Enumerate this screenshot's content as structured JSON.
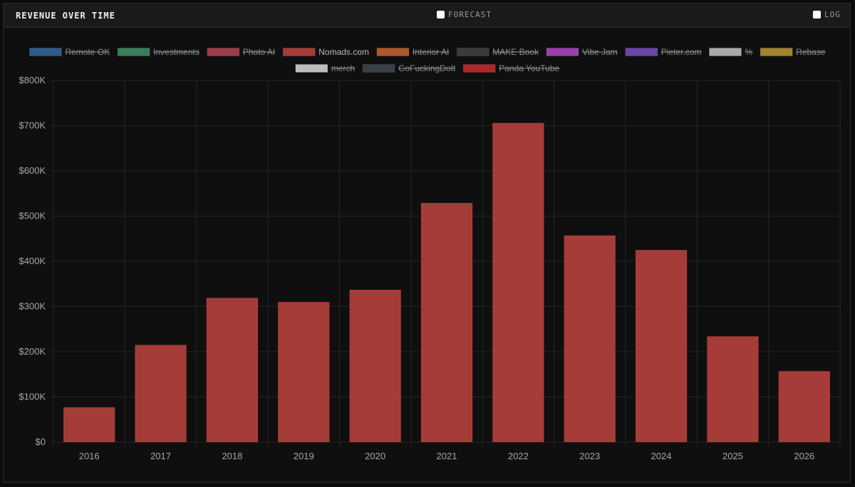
{
  "panel": {
    "title": "REVENUE OVER TIME",
    "forecast_label": "FORECAST",
    "log_label": "LOG"
  },
  "colors": {
    "bar": "#a63c38",
    "grid": "#262626",
    "legend_active": "#b8b8b8",
    "legend_inactive": "#8f8f8f"
  },
  "chart_data": {
    "type": "bar",
    "categories": [
      "2016",
      "2017",
      "2018",
      "2019",
      "2020",
      "2021",
      "2022",
      "2023",
      "2024",
      "2025",
      "2026"
    ],
    "series": [
      {
        "name": "Nomads.com",
        "values": [
          77000,
          215000,
          319000,
          310000,
          337000,
          529000,
          706000,
          457000,
          425000,
          234000,
          157000
        ]
      }
    ],
    "ylim": [
      0,
      800000
    ],
    "yticks": [
      "$0",
      "$100K",
      "$200K",
      "$300K",
      "$400K",
      "$500K",
      "$600K",
      "$700K",
      "$800K"
    ],
    "grid": true,
    "legend_position": "top",
    "legend": [
      {
        "name": "Remote OK",
        "color": "#2f5b8c",
        "hidden": true
      },
      {
        "name": "Investments",
        "color": "#3a7d5c",
        "hidden": true
      },
      {
        "name": "Photo AI",
        "color": "#9e3d4e",
        "hidden": true
      },
      {
        "name": "Nomads.com",
        "color": "#a63c38",
        "hidden": false
      },
      {
        "name": "Interior AI",
        "color": "#b0582a",
        "hidden": true
      },
      {
        "name": "MAKE Book",
        "color": "#3b3b3b",
        "hidden": true
      },
      {
        "name": "Vibe Jam",
        "color": "#9a3fae",
        "hidden": true
      },
      {
        "name": "Pieter.com",
        "color": "#6b45a8",
        "hidden": true
      },
      {
        "name": "%",
        "color": "#a9a9a9",
        "hidden": true
      },
      {
        "name": "Rebase",
        "color": "#a3852e",
        "hidden": true
      },
      {
        "name": "merch",
        "color": "#bdbdbd",
        "hidden": true
      },
      {
        "name": "GoFuckingDoIt",
        "color": "#3a3f47",
        "hidden": true
      },
      {
        "name": "Panda YouTube",
        "color": "#b1262c",
        "hidden": true
      }
    ]
  }
}
